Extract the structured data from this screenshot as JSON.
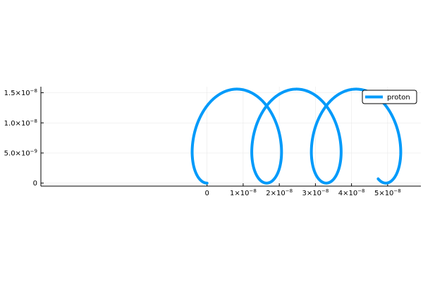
{
  "chart_data": {
    "type": "line",
    "title": "",
    "xlabel": "",
    "ylabel": "",
    "xlim": [
      -4.6e-08,
      5.92e-08
    ],
    "ylim": [
      -5e-10,
      1.6e-08
    ],
    "x_ticks": [
      {
        "value": 0,
        "label": "0",
        "exp": ""
      },
      {
        "value": 1e-08,
        "label": "1×10",
        "exp": "−8"
      },
      {
        "value": 2e-08,
        "label": "2×10",
        "exp": "−8"
      },
      {
        "value": 3e-08,
        "label": "3×10",
        "exp": "−8"
      },
      {
        "value": 4e-08,
        "label": "4×10",
        "exp": "−8"
      },
      {
        "value": 5e-08,
        "label": "5×10",
        "exp": "−8"
      }
    ],
    "y_ticks": [
      {
        "value": 0,
        "label": "0",
        "exp": ""
      },
      {
        "value": 5e-09,
        "label": "5.0×10",
        "exp": "−9"
      },
      {
        "value": 1e-08,
        "label": "1.0×10",
        "exp": "−8"
      },
      {
        "value": 1.5e-08,
        "label": "1.5×10",
        "exp": "−8"
      }
    ],
    "grid": true,
    "legend_position": "top-right",
    "series": [
      {
        "name": "proton",
        "color": "#009AFA",
        "curve": "trochoid",
        "x_start": 0,
        "y_start": 0,
        "x_end": 4.76e-08,
        "y_min": 0,
        "y_max": 1.56e-08,
        "loop_centers_x": [
          8.2e-09,
          2.47e-08,
          4.12e-08
        ],
        "loop_spacing": 1.65e-08
      }
    ]
  },
  "legend": {
    "entries": [
      {
        "label": "proton",
        "color": "#009AFA"
      }
    ]
  }
}
